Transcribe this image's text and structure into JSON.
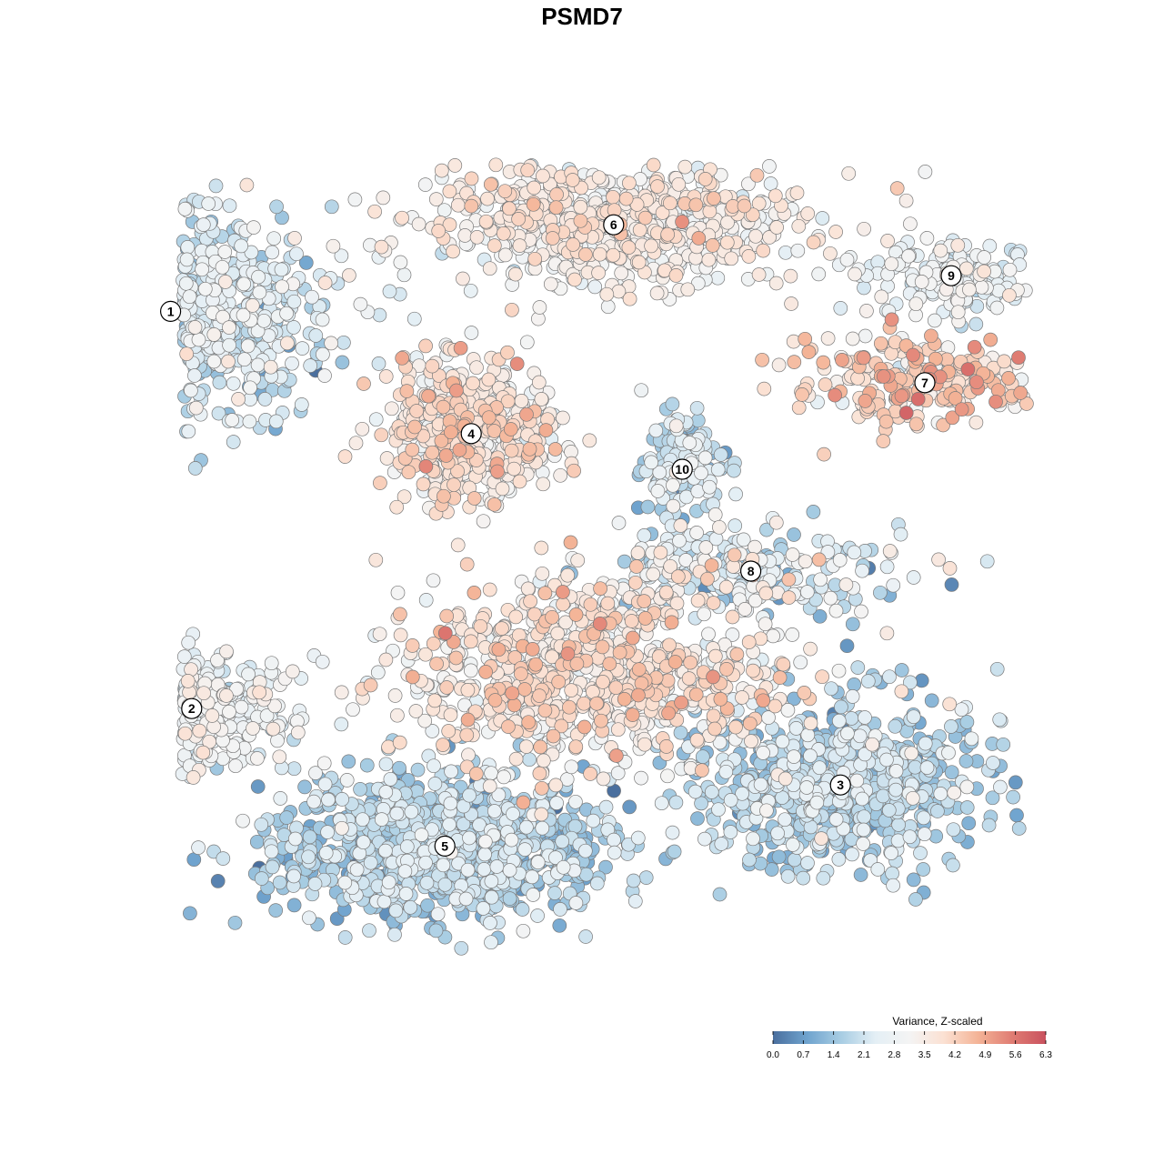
{
  "chart_data": {
    "type": "scatter",
    "title": "PSMD7",
    "xlabel": "",
    "ylabel": "",
    "grid": false,
    "legend": {
      "title": "Variance, Z-scaled",
      "placement": "bottom-right",
      "range": [
        0,
        6.3
      ],
      "ticks": [
        "0.0",
        "0.7",
        "1.4",
        "2.1",
        "2.8",
        "3.5",
        "4.2",
        "4.9",
        "5.6",
        "6.3"
      ],
      "colors": [
        "#4a6f9e",
        "#6fa3ce",
        "#a8cde3",
        "#e4eff5",
        "#f4f4f4",
        "#fbe1d3",
        "#f4b497",
        "#e07d73",
        "#c9515e"
      ]
    },
    "clusters": [
      {
        "id": "1",
        "x": -78,
        "y": 51,
        "spread": [
          14,
          10
        ],
        "n": 1100,
        "mean": 2.1,
        "sd": 0.6
      },
      {
        "id": "2",
        "x": -74,
        "y": -27,
        "spread": [
          10,
          5
        ],
        "n": 450,
        "mean": 2.8,
        "sd": 0.5
      },
      {
        "id": "3",
        "x": 49,
        "y": -42,
        "spread": [
          13,
          8
        ],
        "n": 750,
        "mean": 1.7,
        "sd": 0.6
      },
      {
        "id": "4",
        "x": -21,
        "y": 27,
        "spread": [
          8,
          7
        ],
        "n": 500,
        "mean": 3.6,
        "sd": 0.6
      },
      {
        "id": "5",
        "x": -26,
        "y": -54,
        "spread": [
          16,
          7
        ],
        "n": 1100,
        "mean": 1.6,
        "sd": 0.6
      },
      {
        "id": "6",
        "x": 6,
        "y": 68,
        "spread": [
          18,
          6
        ],
        "n": 750,
        "mean": 3.3,
        "sd": 0.5
      },
      {
        "id": "7",
        "x": 65,
        "y": 37,
        "spread": [
          12,
          4
        ],
        "n": 260,
        "mean": 4.0,
        "sd": 0.7
      },
      {
        "id": "8",
        "x": 32,
        "y": 0,
        "spread": [
          14,
          4
        ],
        "n": 230,
        "mean": 2.4,
        "sd": 0.9
      },
      {
        "id": "9",
        "x": 70,
        "y": 58,
        "spread": [
          9,
          4
        ],
        "n": 180,
        "mean": 2.7,
        "sd": 0.5
      },
      {
        "id": "10",
        "x": 19,
        "y": 20,
        "spread": [
          4,
          5
        ],
        "n": 160,
        "mean": 1.9,
        "sd": 0.6
      },
      {
        "id": "",
        "x": 1,
        "y": -20,
        "spread": [
          18,
          9
        ],
        "n": 850,
        "mean": 3.6,
        "sd": 0.6
      }
    ]
  }
}
